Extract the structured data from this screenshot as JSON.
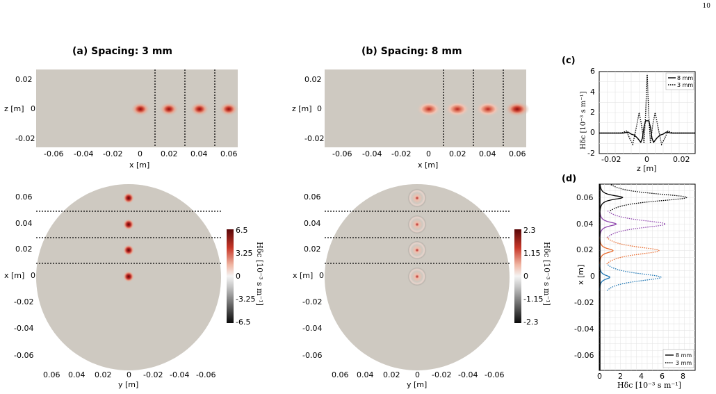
{
  "page_number": "10",
  "panels": {
    "a_title": "(a)  Spacing: 3 mm",
    "b_title": "(b)  Spacing: 8 mm",
    "c_label": "(c)",
    "d_label": "(d)"
  },
  "axes": {
    "z_label": "z [m]",
    "x_label": "x [m]",
    "y_label": "y [m]",
    "z_ticks_top": [
      "0.02",
      "0",
      "-0.02"
    ],
    "x_ticks_top": [
      "-0.06",
      "-0.04",
      "-0.02",
      "0",
      "0.02",
      "0.04",
      "0.06"
    ],
    "x_ticks_side": [
      "0.06",
      "0.04",
      "0.02",
      "0",
      "-0.02",
      "-0.04",
      "-0.06"
    ],
    "y_ticks_bottom": [
      "0.06",
      "0.04",
      "0.02",
      "0",
      "-0.02",
      "-0.04",
      "-0.06"
    ]
  },
  "colorbars": [
    {
      "ticks": [
        "6.5",
        "3.25",
        "0",
        "-3.25",
        "-6.5"
      ],
      "title": "Hδc [10⁻³ s m⁻¹]"
    },
    {
      "ticks": [
        "2.3",
        "1.15",
        "0",
        "-1.15",
        "-2.3"
      ],
      "title": "Hδc [10⁻³ s m⁻¹]"
    }
  ],
  "colors": {
    "background_field": "#cec9c1",
    "positive": "#b8231f",
    "negative": "#111111",
    "mid": "#f2f2f2"
  },
  "chart_data": [
    {
      "type": "line",
      "panel": "(c)",
      "xlabel": "z [m]",
      "ylabel": "Hδc [10⁻³ s m⁻¹]",
      "xlim": [
        -0.03,
        0.03
      ],
      "ylim": [
        -2,
        6
      ],
      "xticks": [
        "-0.02",
        "0",
        "0.02"
      ],
      "yticks": [
        "-2",
        "0",
        "2",
        "4",
        "6"
      ],
      "grid": true,
      "legend": "top-right",
      "series": [
        {
          "name": "8 mm",
          "style": "solid",
          "x": [
            -0.03,
            -0.015,
            -0.012,
            -0.01,
            -0.008,
            -0.006,
            -0.004,
            -0.003,
            -0.002,
            -0.001,
            0,
            0.001,
            0.002,
            0.003,
            0.004,
            0.006,
            0.008,
            0.01,
            0.012,
            0.015,
            0.03
          ],
          "y": [
            0,
            0,
            0.1,
            -0.1,
            -0.2,
            -0.5,
            -0.9,
            -0.5,
            0.6,
            1.2,
            1.2,
            1.2,
            0.6,
            -0.5,
            -0.9,
            -0.5,
            -0.2,
            -0.1,
            0.1,
            0,
            0
          ]
        },
        {
          "name": "3 mm",
          "style": "dotted",
          "x": [
            -0.03,
            -0.016,
            -0.013,
            -0.011,
            -0.009,
            -0.007,
            -0.005,
            -0.0035,
            -0.002,
            -0.001,
            0,
            0.001,
            0.002,
            0.0035,
            0.005,
            0.007,
            0.009,
            0.011,
            0.013,
            0.016,
            0.03
          ],
          "y": [
            0,
            0,
            0.2,
            -0.5,
            -1.1,
            0.4,
            2.0,
            0.8,
            -1.0,
            1.8,
            5.7,
            1.8,
            -1.0,
            0.8,
            2.0,
            0.4,
            -1.1,
            -0.5,
            0.2,
            0,
            0
          ]
        }
      ]
    },
    {
      "type": "line",
      "panel": "(d)",
      "xlabel": "Hδc [10⁻³ s m⁻¹]",
      "ylabel": "x [m]",
      "xlim": [
        0,
        9
      ],
      "ylim": [
        -0.07,
        0.07
      ],
      "xticks": [
        "0",
        "2",
        "4",
        "6",
        "8"
      ],
      "yticks": [
        "0.06",
        "0.04",
        "0.02",
        "0",
        "-0.02",
        "-0.04",
        "-0.06"
      ],
      "grid": true,
      "legend": "bottom-right",
      "series": [
        {
          "name": "8 mm",
          "style": "solid",
          "peaks": [
            {
              "x0": 0.0,
              "height": 1.0,
              "color": "#1f77b4"
            },
            {
              "x0": 0.02,
              "height": 1.3,
              "color": "#e8692a"
            },
            {
              "x0": 0.04,
              "height": 1.6,
              "color": "#8e44ad"
            },
            {
              "x0": 0.06,
              "height": 2.2,
              "color": "#000000"
            }
          ]
        },
        {
          "name": "3 mm",
          "style": "dotted",
          "peaks": [
            {
              "x0": 0.0,
              "height": 5.8,
              "color": "#1f77b4"
            },
            {
              "x0": 0.02,
              "height": 5.6,
              "color": "#e8692a"
            },
            {
              "x0": 0.04,
              "height": 6.2,
              "color": "#8e44ad"
            },
            {
              "x0": 0.06,
              "height": 8.2,
              "color": "#000000"
            }
          ]
        }
      ]
    }
  ]
}
